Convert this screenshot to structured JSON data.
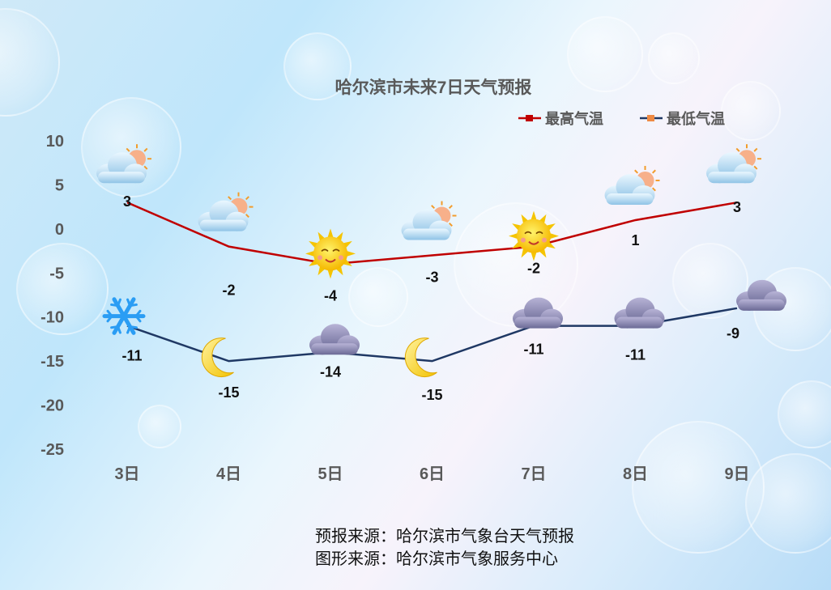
{
  "chart_data": {
    "type": "line",
    "title": "哈尔滨市未来7日天气预报",
    "categories": [
      "3日",
      "4日",
      "5日",
      "6日",
      "7日",
      "8日",
      "9日"
    ],
    "ylim": [
      -25,
      10
    ],
    "yticks": [
      10,
      5,
      0,
      -5,
      -10,
      -15,
      -20,
      -25
    ],
    "grid": false,
    "legend_position": "top-right",
    "series": [
      {
        "name": "最高气温",
        "color": "#c00000",
        "values": [
          3,
          -2,
          -4,
          -3,
          -2,
          1,
          3
        ],
        "icons": [
          "partly-cloudy-icon",
          "partly-cloudy-icon",
          "sun-icon",
          "partly-cloudy-icon",
          "sun-icon",
          "partly-cloudy-icon",
          "partly-cloudy-icon"
        ]
      },
      {
        "name": "最低气温",
        "color": "#1f3864",
        "values": [
          -11,
          -15,
          -14,
          -15,
          -11,
          -11,
          -9
        ],
        "icons": [
          "snowflake-icon",
          "moon-icon",
          "night-cloudy-icon",
          "moon-icon",
          "night-cloudy-icon",
          "night-cloudy-icon",
          "night-cloudy-icon"
        ]
      }
    ]
  },
  "footer": {
    "line1": "预报来源：哈尔滨市气象台天气预报",
    "line2": "图形来源：哈尔滨市气象服务中心"
  }
}
